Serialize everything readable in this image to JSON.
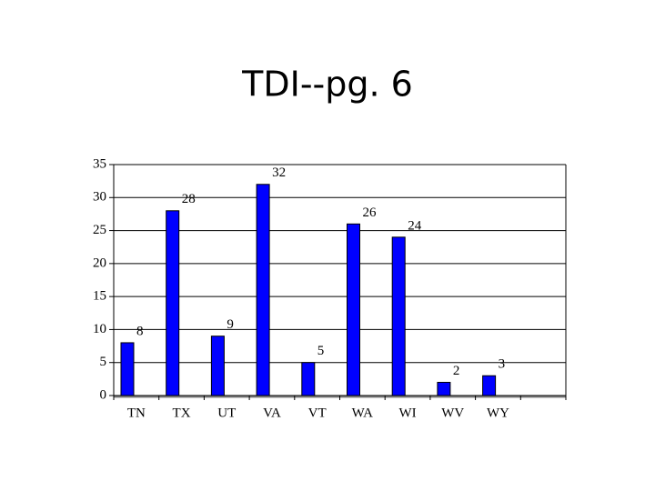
{
  "chart_data": {
    "type": "bar",
    "title": "TDI--pg. 6",
    "categories": [
      "TN",
      "TX",
      "UT",
      "VA",
      "VT",
      "WA",
      "WI",
      "WV",
      "WY"
    ],
    "values": [
      8,
      28,
      9,
      32,
      5,
      26,
      24,
      2,
      3
    ],
    "color": "#0000ff",
    "ylim": [
      0,
      35
    ],
    "yticks": [
      0,
      5,
      10,
      15,
      20,
      25,
      30,
      35
    ],
    "grid": true
  }
}
